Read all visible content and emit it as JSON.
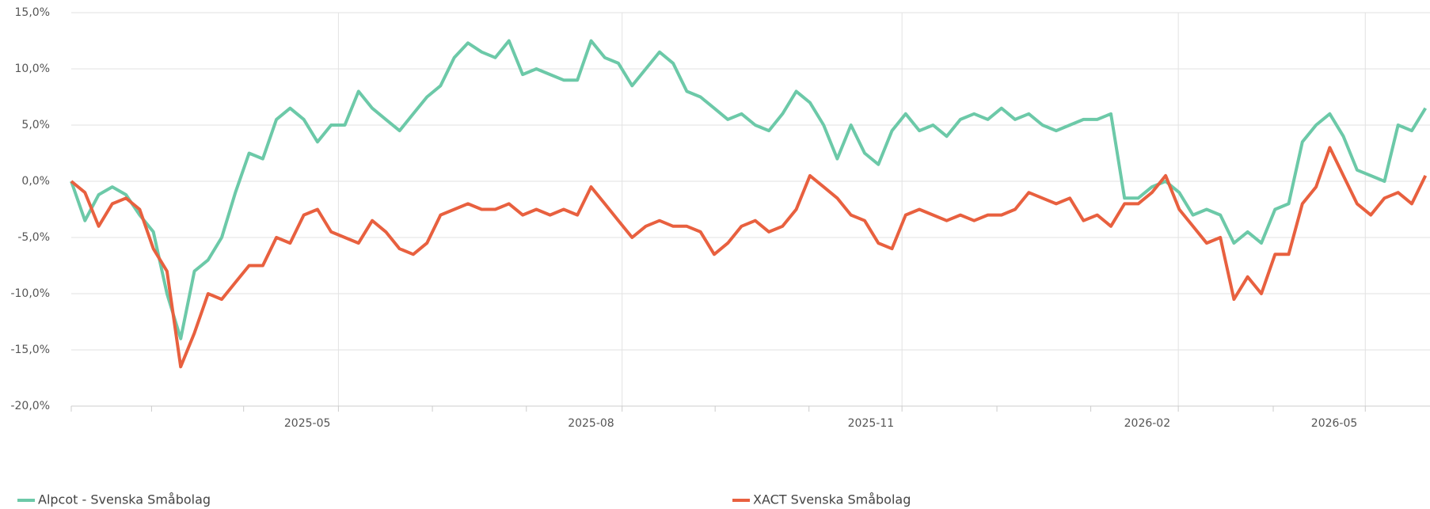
{
  "chart_data": {
    "type": "line",
    "series": [
      {
        "name": "Alpcot - Svenska Småbolag",
        "color": "#6cc9a8",
        "values": [
          0,
          -3.5,
          -1.2,
          -0.5,
          -1.2,
          -3,
          -4.5,
          -10,
          -14,
          -8,
          -7,
          -5,
          -1,
          2.5,
          2,
          5.5,
          6.5,
          5.5,
          3.5,
          5,
          5,
          8,
          6.5,
          5.5,
          4.5,
          6,
          7.5,
          8.5,
          11,
          12.3,
          11.5,
          11,
          12.5,
          9.5,
          10,
          9.5,
          9,
          9,
          12.5,
          11,
          10.5,
          8.5,
          10,
          11.5,
          10.5,
          8,
          7.5,
          6.5,
          5.5,
          6,
          5,
          4.5,
          6,
          8,
          7,
          5,
          2,
          5,
          2.5,
          1.5,
          4.5,
          6,
          4.5,
          5,
          4,
          5.5,
          6,
          5.5,
          6.5,
          5.5,
          6,
          5,
          4.5,
          5,
          5.5,
          5.5,
          6,
          -1.5,
          -1.5,
          -0.5,
          0,
          -1,
          -3,
          -2.5,
          -3,
          -5.5,
          -4.5,
          -5.5,
          -2.5,
          -2,
          3.5,
          5,
          6,
          4,
          1,
          0.5,
          0,
          5,
          4.5,
          6.5
        ]
      },
      {
        "name": "XACT Svenska Småbolag",
        "color": "#e8603f",
        "values": [
          0,
          -1,
          -4,
          -2,
          -1.5,
          -2.5,
          -6,
          -8,
          -16.5,
          -13.5,
          -10,
          -10.5,
          -9,
          -7.5,
          -7.5,
          -5,
          -5.5,
          -3,
          -2.5,
          -4.5,
          -5,
          -5.5,
          -3.5,
          -4.5,
          -6,
          -6.5,
          -5.5,
          -3,
          -2.5,
          -2,
          -2.5,
          -2.5,
          -2,
          -3,
          -2.5,
          -3,
          -2.5,
          -3,
          -0.5,
          -2,
          -3.5,
          -5,
          -4,
          -3.5,
          -4,
          -4,
          -4.5,
          -6.5,
          -5.5,
          -4,
          -3.5,
          -4.5,
          -4,
          -2.5,
          0.5,
          -0.5,
          -1.5,
          -3,
          -3.5,
          -5.5,
          -6,
          -3,
          -2.5,
          -3,
          -3.5,
          -3,
          -3.5,
          -3,
          -3,
          -2.5,
          -1,
          -1.5,
          -2,
          -1.5,
          -3.5,
          -3,
          -4,
          -2,
          -2,
          -1,
          0.5,
          -2.5,
          -4,
          -5.5,
          -5,
          -10.5,
          -8.5,
          -10,
          -6.5,
          -6.5,
          -2,
          -0.5,
          3,
          0.5,
          -2,
          -3,
          -1.5,
          -1,
          -2,
          0.5
        ]
      }
    ],
    "xlim": [
      0,
      99.33
    ],
    "xticks": [
      {
        "value": 19.53,
        "label": "2025-05"
      },
      {
        "value": 40.27,
        "label": "2025-08"
      },
      {
        "value": 60.73,
        "label": "2025-11"
      },
      {
        "value": 80.93,
        "label": "2026-02"
      },
      {
        "value": 94.6,
        "label": "2026-05"
      }
    ],
    "xminorticks": [
      0,
      5.87,
      12.6,
      26.4,
      33.27,
      47.07,
      53.93,
      67.67,
      74.53,
      87.87
    ],
    "ylim": [
      -20,
      15
    ],
    "yticks": [
      {
        "value": -20,
        "label": "-20,0%"
      },
      {
        "value": -15,
        "label": "-15,0%"
      },
      {
        "value": -10,
        "label": "-10,0%"
      },
      {
        "value": -5,
        "label": "-5,0%"
      },
      {
        "value": 0,
        "label": "0,0%"
      },
      {
        "value": 5,
        "label": "5,0%"
      },
      {
        "value": 10,
        "label": "10,0%"
      },
      {
        "value": 15,
        "label": "15,0%"
      }
    ],
    "grid": true,
    "legend": "bottom-left"
  }
}
